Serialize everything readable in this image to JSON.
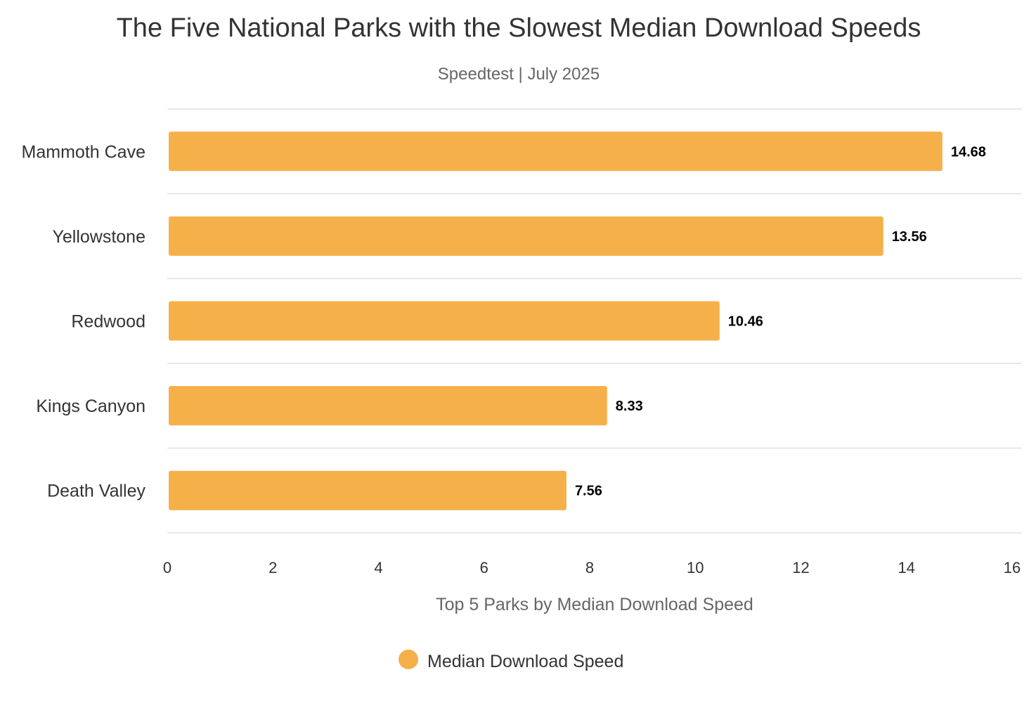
{
  "chart_data": {
    "type": "bar",
    "orientation": "horizontal",
    "title": "The Five National Parks with the Slowest Median Download Speeds",
    "subtitle": "Speedtest | July 2025",
    "categories": [
      "Mammoth Cave",
      "Yellowstone",
      "Redwood",
      "Kings Canyon",
      "Death Valley"
    ],
    "series": [
      {
        "name": "Median Download Speed",
        "values": [
          14.68,
          13.56,
          10.46,
          8.33,
          7.56
        ],
        "color": "#f6b04a"
      }
    ],
    "data_labels": [
      "14.68",
      "13.56",
      "10.46",
      "8.33",
      "7.56"
    ],
    "xlabel": "Top 5 Parks by Median Download Speed",
    "ylabel": "",
    "xlim": [
      0,
      16
    ],
    "x_ticks": [
      0,
      2,
      4,
      6,
      8,
      10,
      12,
      14,
      16
    ],
    "grid": true,
    "legend_position": "bottom-center"
  }
}
